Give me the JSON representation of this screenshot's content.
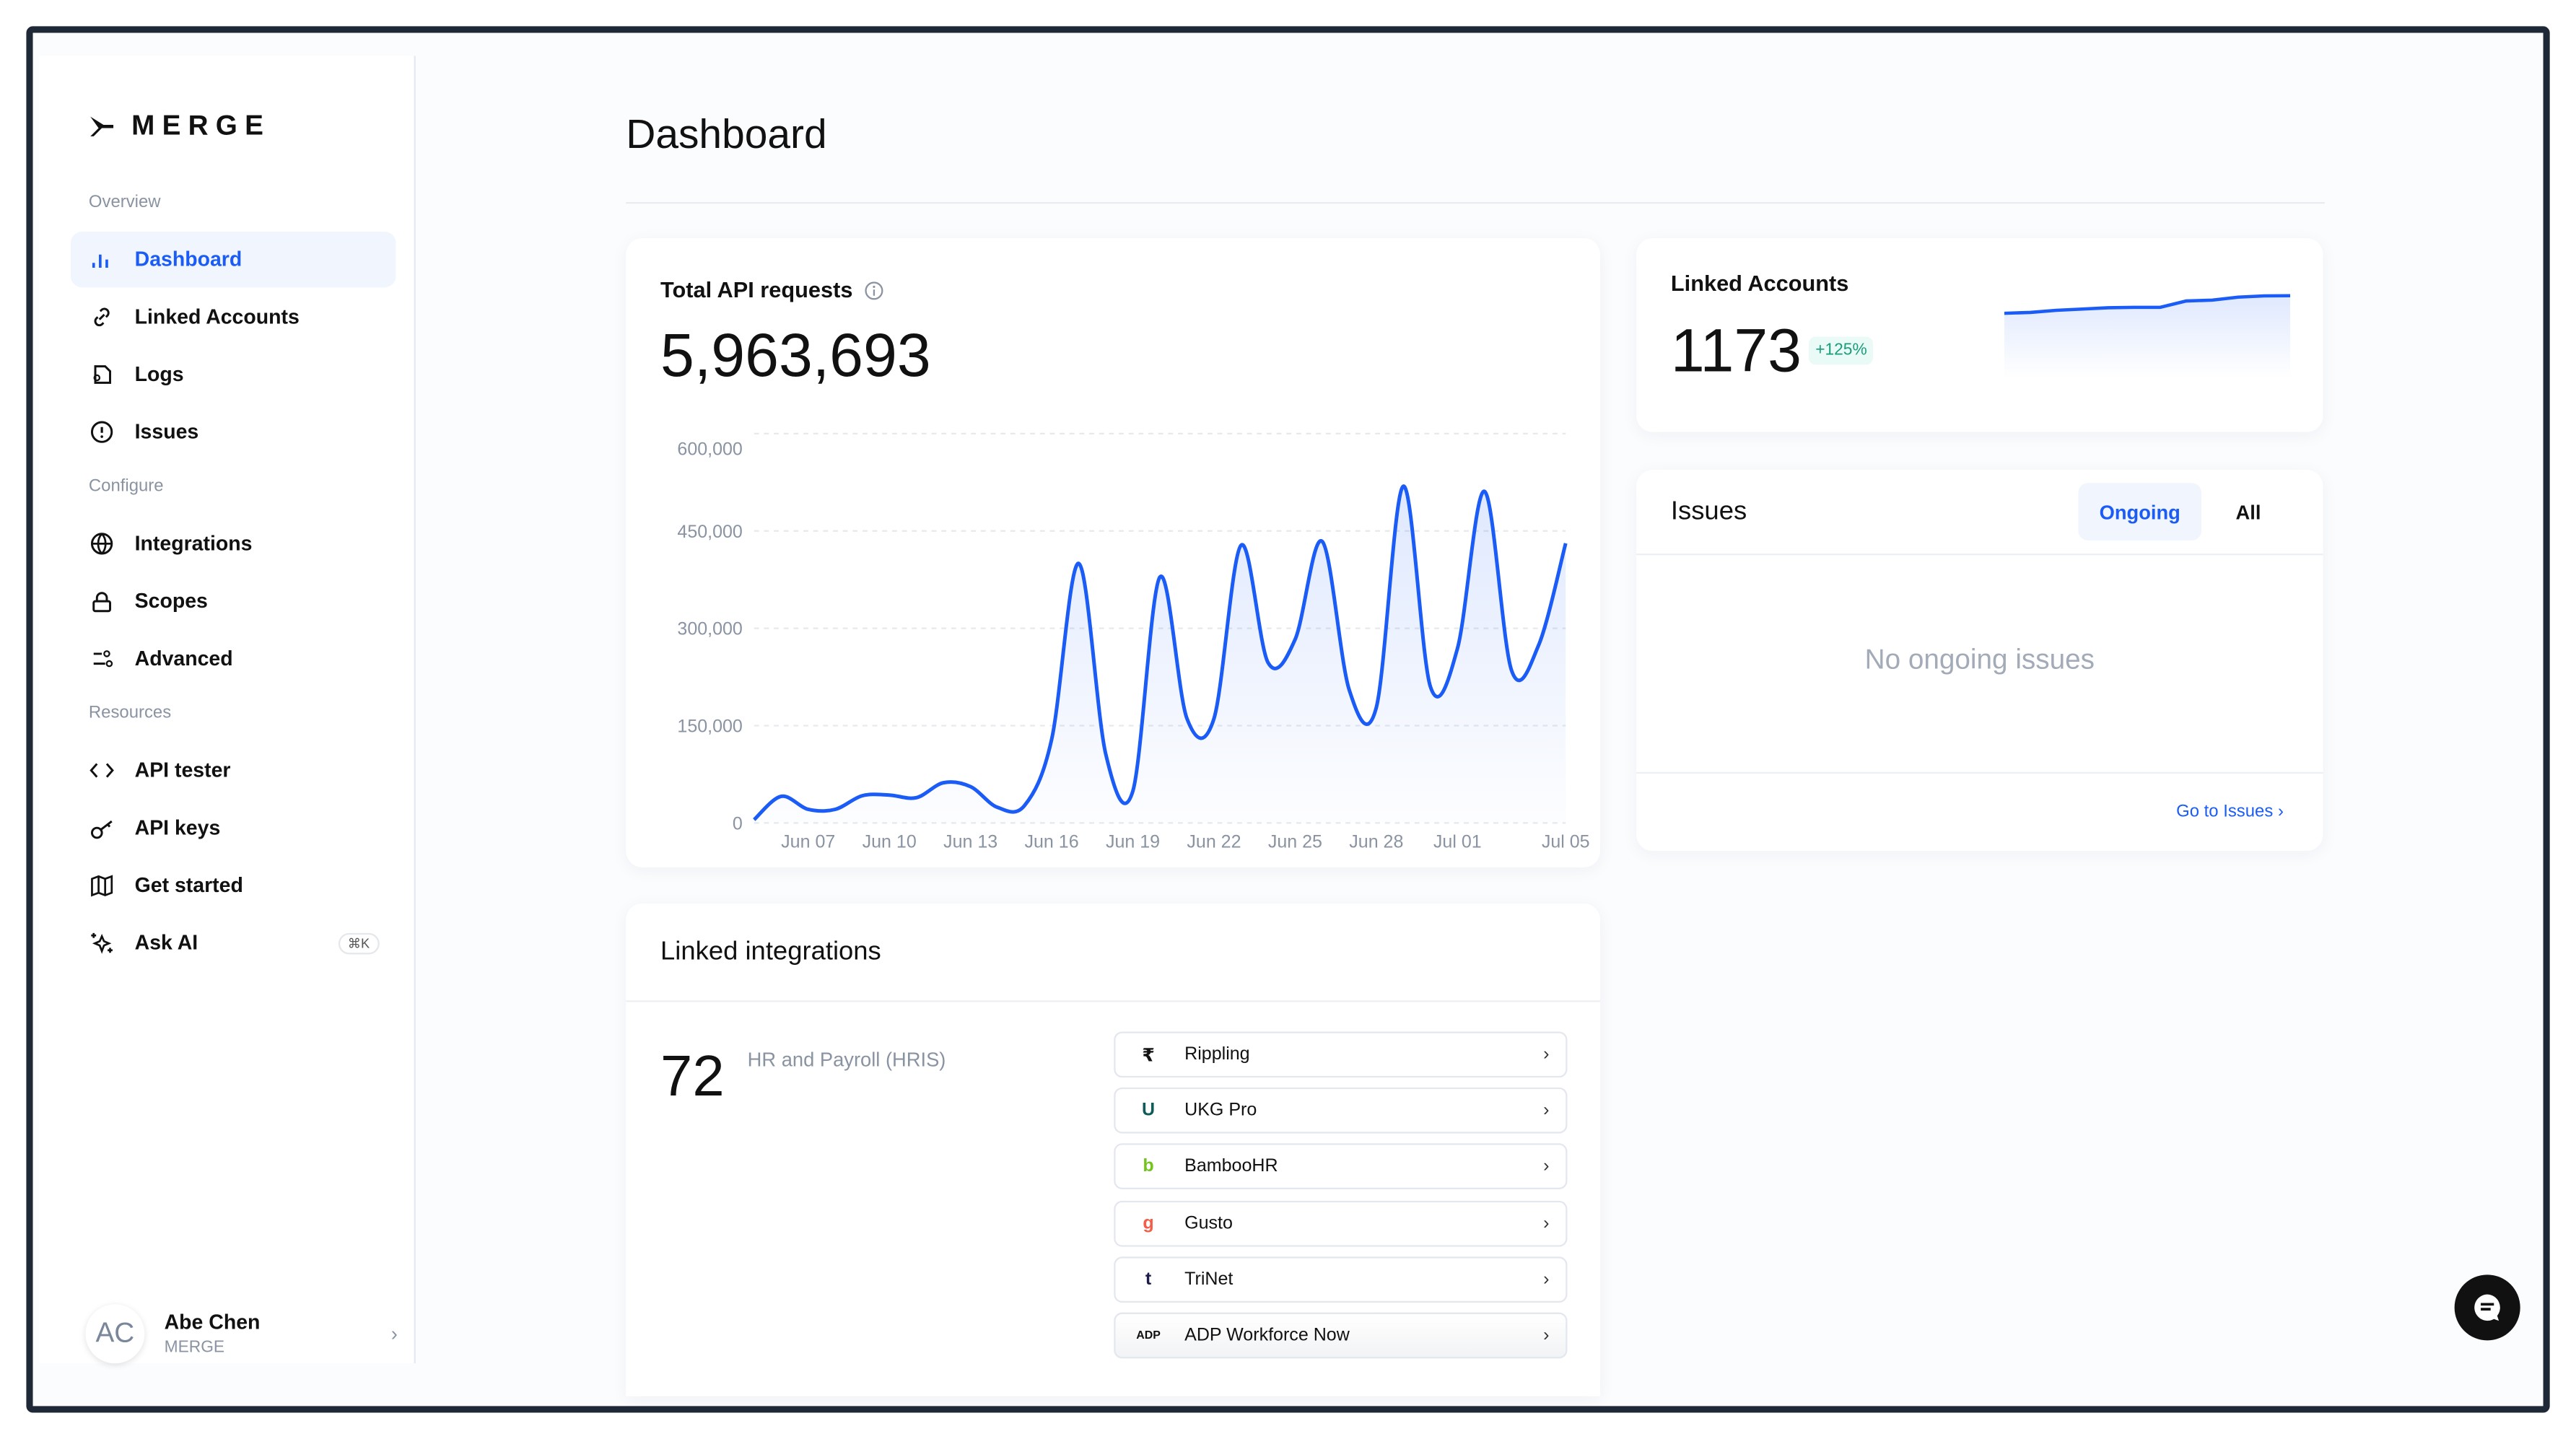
{
  "brand": {
    "name": "MERGE"
  },
  "sidebar": {
    "sections": [
      {
        "label": "Overview"
      },
      {
        "label": "Configure"
      },
      {
        "label": "Resources"
      }
    ],
    "items": [
      {
        "label": "Dashboard",
        "icon": "bar-chart-icon",
        "active": true
      },
      {
        "label": "Linked Accounts",
        "icon": "link-icon"
      },
      {
        "label": "Logs",
        "icon": "logs-icon"
      },
      {
        "label": "Issues",
        "icon": "alert-circle-icon"
      },
      {
        "label": "Integrations",
        "icon": "globe-icon"
      },
      {
        "label": "Scopes",
        "icon": "lock-icon"
      },
      {
        "label": "Advanced",
        "icon": "sliders-icon"
      },
      {
        "label": "API tester",
        "icon": "code-icon"
      },
      {
        "label": "API keys",
        "icon": "key-icon"
      },
      {
        "label": "Get started",
        "icon": "map-icon"
      },
      {
        "label": "Ask AI",
        "icon": "sparkles-icon",
        "shortcut": "⌘K"
      }
    ],
    "user": {
      "initials": "AC",
      "name": "Abe Chen",
      "org": "MERGE"
    }
  },
  "header": {
    "title": "Dashboard"
  },
  "api_requests": {
    "title": "Total API requests",
    "total": "5,963,693"
  },
  "linked_accounts": {
    "title": "Linked Accounts",
    "count": "1173",
    "change": "+125%",
    "sparkline": [
      1,
      1.4,
      2.4,
      3,
      3.6,
      3.8,
      3.8,
      6.8,
      7.2,
      8.6,
      9.2,
      9.3
    ]
  },
  "issues": {
    "title": "Issues",
    "tabs": [
      {
        "label": "Ongoing",
        "active": true
      },
      {
        "label": "All"
      }
    ],
    "empty": "No ongoing issues",
    "link": "Go to Issues"
  },
  "linked_integrations": {
    "title": "Linked integrations",
    "count": "72",
    "category": "HR and Payroll (HRIS)",
    "items": [
      {
        "name": "Rippling",
        "logo": "₹",
        "color": "#111111"
      },
      {
        "name": "UKG Pro",
        "logo": "U",
        "color": "#0f5b5b"
      },
      {
        "name": "BambooHR",
        "logo": "b",
        "color": "#73c41d"
      },
      {
        "name": "Gusto",
        "logo": "g",
        "color": "#f45d48"
      },
      {
        "name": "TriNet",
        "logo": "t",
        "color": "#1d1b4c"
      },
      {
        "name": "ADP Workforce Now",
        "logo": "ADP",
        "color": "#111111"
      }
    ]
  },
  "colors": {
    "accent": "#1a5cf5",
    "success": "#1a9e7a"
  },
  "chart_data": {
    "type": "area",
    "title": "Total API requests",
    "xlabel": "",
    "ylabel": "",
    "ylim": [
      0,
      600000
    ],
    "yticks": [
      "0",
      "150,000",
      "300,000",
      "450,000",
      "600,000"
    ],
    "xticks": [
      "Jun 07",
      "Jun 10",
      "Jun 13",
      "Jun 16",
      "Jun 19",
      "Jun 22",
      "Jun 25",
      "Jun 28",
      "Jul 01",
      "Jul 05"
    ],
    "grid": true,
    "x": [
      "Jun 05",
      "Jun 06",
      "Jun 07",
      "Jun 08",
      "Jun 09",
      "Jun 10",
      "Jun 11",
      "Jun 12",
      "Jun 13",
      "Jun 14",
      "Jun 15",
      "Jun 16",
      "Jun 17",
      "Jun 18",
      "Jun 19",
      "Jun 20",
      "Jun 21",
      "Jun 22",
      "Jun 23",
      "Jun 24",
      "Jun 25",
      "Jun 26",
      "Jun 27",
      "Jun 28",
      "Jun 29",
      "Jun 30",
      "Jul 01",
      "Jul 02",
      "Jul 03",
      "Jul 04",
      "Jul 05"
    ],
    "values": [
      5000,
      41000,
      21000,
      21000,
      42000,
      43000,
      39000,
      62000,
      56000,
      24000,
      27000,
      129000,
      400000,
      106000,
      49000,
      379000,
      161000,
      161000,
      428000,
      247000,
      283000,
      434000,
      205000,
      178000,
      519000,
      210000,
      269000,
      511000,
      235000,
      274000,
      431000
    ]
  }
}
